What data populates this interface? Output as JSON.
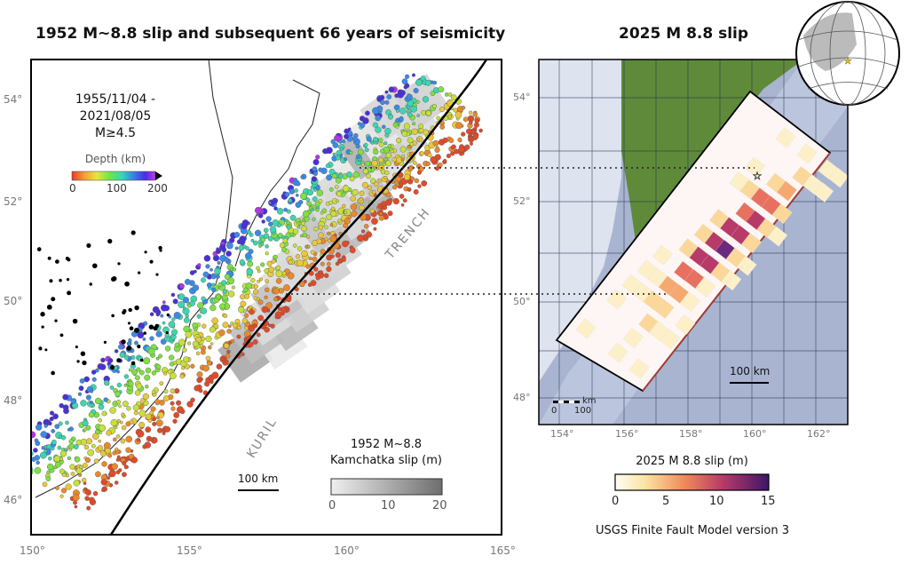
{
  "left_panel": {
    "title": "1952 M~8.8 slip and subsequent 66 years of seismicity",
    "date_range_start": "1955/11/04 -",
    "date_range_end": "2021/08/05",
    "magnitude_filter": "M≥4.5",
    "depth_legend": {
      "title": "Depth (km)",
      "ticks": [
        "0",
        "100",
        "200"
      ]
    },
    "slip_legend": {
      "title_line1": "1952 M~8.8",
      "title_line2": "Kamchatka slip (m)",
      "ticks": [
        "0",
        "10",
        "20"
      ]
    },
    "scale_bar": "100 km",
    "trench_labels": [
      "KURIL",
      "TRENCH"
    ],
    "lat_ticks": [
      "54°",
      "52°",
      "50°",
      "48°",
      "46°"
    ],
    "lon_ticks": [
      "150°",
      "155°",
      "160°",
      "165°"
    ]
  },
  "right_panel": {
    "title": "2025 M 8.8 slip",
    "scale_bar": "100 km",
    "inset_scale": {
      "unit": "km",
      "ticks": [
        "0",
        "100"
      ]
    },
    "slip_legend": {
      "title": "2025 M 8.8 slip (m)",
      "ticks": [
        "0",
        "5",
        "10",
        "15"
      ]
    },
    "source": "USGS Finite Fault Model version 3",
    "lat_ticks": [
      "54°",
      "52°",
      "50°",
      "48°"
    ],
    "lon_ticks": [
      "154°",
      "156°",
      "158°",
      "160°",
      "162°"
    ]
  },
  "colors": {
    "land": "#5f8a3a",
    "ocean": "#9aa6c6",
    "trench": "#000000",
    "fault_edge": "#c0392b"
  }
}
